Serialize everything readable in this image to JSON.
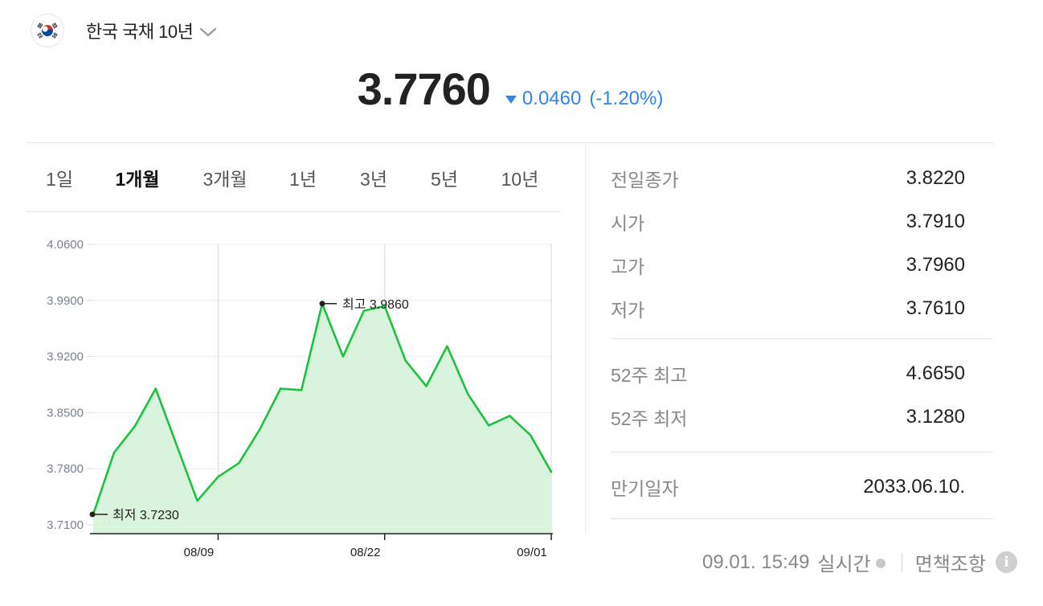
{
  "header": {
    "title": "한국 국채 10년"
  },
  "price": {
    "current": "3.7760",
    "change": "0.0460",
    "change_pct": "(-1.20%)",
    "direction": "down",
    "down_color": "#2f86e8"
  },
  "tabs": [
    {
      "label": "1일",
      "active": false
    },
    {
      "label": "1개월",
      "active": true
    },
    {
      "label": "3개월",
      "active": false
    },
    {
      "label": "1년",
      "active": false
    },
    {
      "label": "3년",
      "active": false
    },
    {
      "label": "5년",
      "active": false
    },
    {
      "label": "10년",
      "active": false
    }
  ],
  "stats": {
    "prev_close_label": "전일종가",
    "prev_close": "3.8220",
    "open_label": "시가",
    "open": "3.7910",
    "high_label": "고가",
    "high": "3.7960",
    "low_label": "저가",
    "low": "3.7610",
    "w52_high_label": "52주 최고",
    "w52_high": "4.6650",
    "w52_low_label": "52주 최저",
    "w52_low": "3.1280",
    "maturity_label": "만기일자",
    "maturity": "2033.06.10."
  },
  "footer": {
    "timestamp": "09.01. 15:49",
    "realtime": "실시간",
    "disclaimer": "면책조항"
  },
  "chart_data": {
    "type": "area",
    "line_color": "#1ec13e",
    "fill_color": "#d8f4dc",
    "y_ticks": [
      "4.0600",
      "3.9900",
      "3.9200",
      "3.8500",
      "3.7800",
      "3.7100"
    ],
    "ylim": [
      3.71,
      4.06
    ],
    "x_ticks": [
      {
        "label": "08/09",
        "index": 6
      },
      {
        "label": "08/22",
        "index": 14
      },
      {
        "label": "09/01",
        "index": 22
      }
    ],
    "values": [
      3.723,
      3.8,
      3.833,
      3.88,
      3.81,
      3.74,
      3.77,
      3.787,
      3.829,
      3.88,
      3.878,
      3.986,
      3.92,
      3.977,
      3.983,
      3.915,
      3.883,
      3.933,
      3.873,
      3.834,
      3.846,
      3.822,
      3.776
    ],
    "max_label": "최고 3.9860",
    "max_index": 11,
    "min_label": "최저 3.7230",
    "min_index": 0
  }
}
